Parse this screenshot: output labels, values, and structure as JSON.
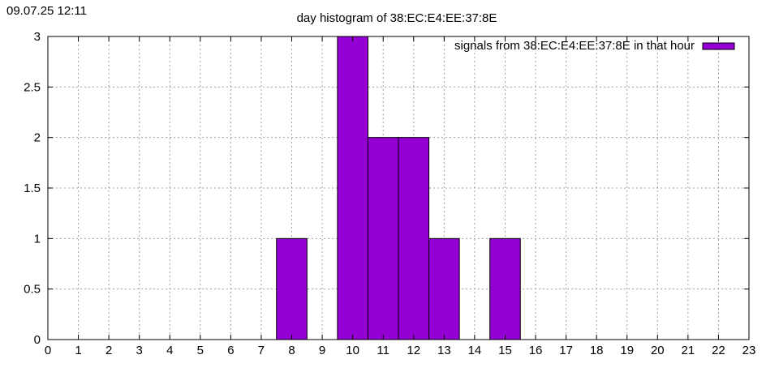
{
  "timestamp": "09.07.25 12:11",
  "chart_data": {
    "type": "bar",
    "title": "day histogram of 38:EC:E4:EE:37:8E",
    "xlabel": "",
    "ylabel": "",
    "x": [
      0,
      1,
      2,
      3,
      4,
      5,
      6,
      7,
      8,
      9,
      10,
      11,
      12,
      13,
      14,
      15,
      16,
      17,
      18,
      19,
      20,
      21,
      22
    ],
    "values": [
      0,
      0,
      0,
      0,
      0,
      0,
      0,
      0,
      1,
      0,
      3,
      2,
      2,
      1,
      0,
      1,
      0,
      0,
      0,
      0,
      0,
      0,
      0
    ],
    "series": [
      {
        "name": "signals from 38:EC:E4:EE:37:8E in that hour",
        "color": "#9400d3"
      }
    ],
    "xlim": [
      0,
      23
    ],
    "ylim": [
      0,
      3
    ],
    "xticks": [
      "0",
      "1",
      "2",
      "3",
      "4",
      "5",
      "6",
      "7",
      "8",
      "9",
      "10",
      "11",
      "12",
      "13",
      "14",
      "15",
      "16",
      "17",
      "18",
      "19",
      "20",
      "21",
      "22",
      "23"
    ],
    "yticks": [
      "0",
      "0.5",
      "1",
      "1.5",
      "2",
      "2.5",
      "3"
    ],
    "grid": true,
    "legend_position": "top-right"
  }
}
